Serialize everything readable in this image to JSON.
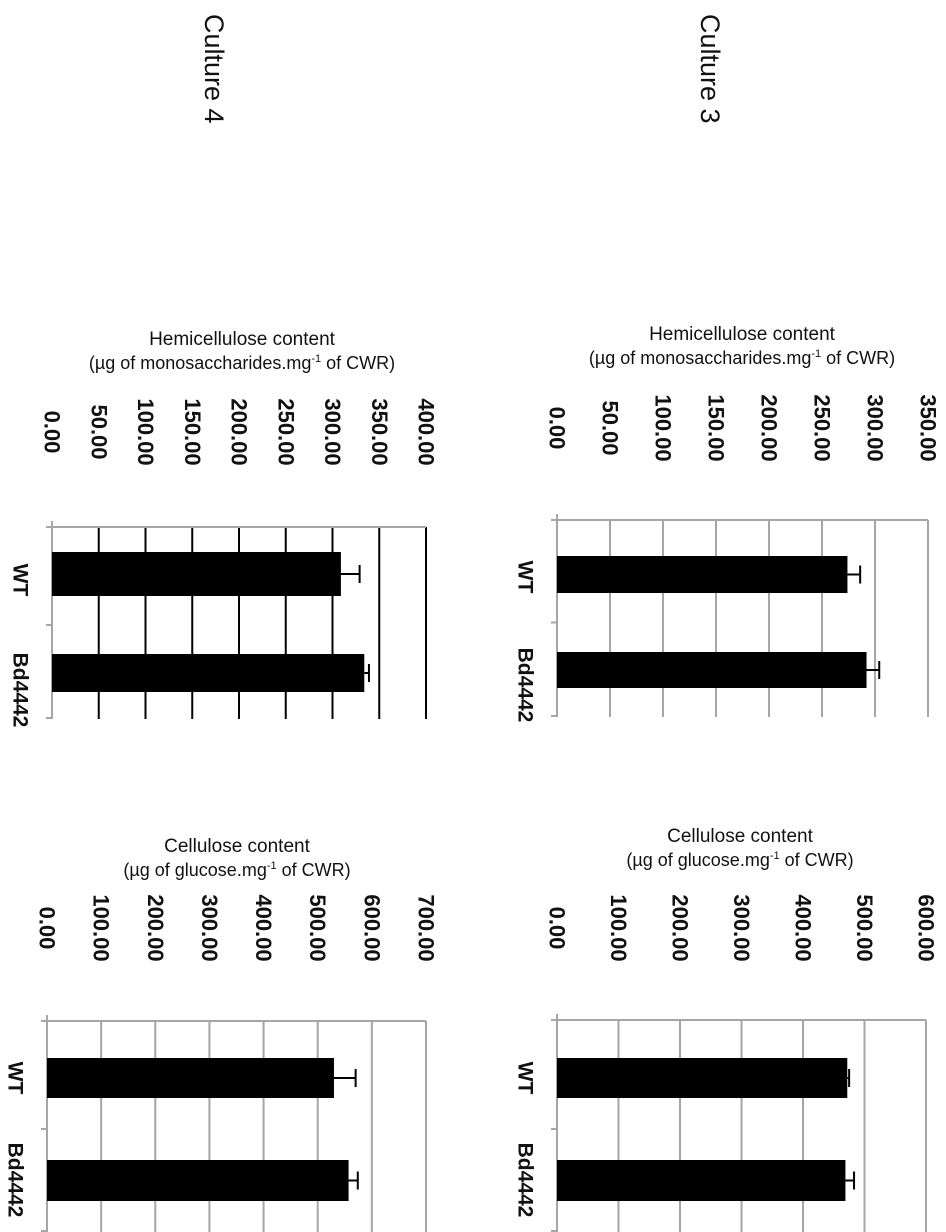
{
  "panels": {
    "culture_4": "Culture 4",
    "culture_3": "Culture 3"
  },
  "colors": {
    "bar": "#000000",
    "grid_light": "#a6a6a6",
    "grid_dark": "#000000",
    "text": "#111111"
  },
  "chart_data": [
    {
      "id": "c4-hemi",
      "type": "bar",
      "title": "Hemicellulose content",
      "subtitle_pre": "(µg of monosaccharides.mg",
      "subtitle_sup": "-1",
      "subtitle_post": " of CWR)",
      "categories": [
        "WT",
        "Bd4442"
      ],
      "values": [
        309,
        334
      ],
      "errors": [
        20,
        5
      ],
      "ticks": [
        "0.00",
        "50.00",
        "100.00",
        "150.00",
        "200.00",
        "250.00",
        "300.00",
        "350.00",
        "400.00"
      ],
      "ylim": [
        0,
        400
      ],
      "grid": "dark"
    },
    {
      "id": "c3-hemi",
      "type": "bar",
      "title": "Hemicellulose content",
      "subtitle_pre": "(µg of monosaccharides.mg",
      "subtitle_sup": "-1",
      "subtitle_post": " of CWR)",
      "categories": [
        "WT",
        "Bd4442"
      ],
      "values": [
        274,
        292
      ],
      "errors": [
        12,
        12
      ],
      "ticks": [
        "0.00",
        "50.00",
        "100.00",
        "150.00",
        "200.00",
        "250.00",
        "300.00",
        "350.00"
      ],
      "ylim": [
        0,
        350
      ],
      "grid": "light"
    },
    {
      "id": "c4-cell",
      "type": "bar",
      "title": "Cellulose content",
      "subtitle_pre": "(µg of glucose.mg",
      "subtitle_sup": "-1",
      "subtitle_post": "  of CWR)",
      "categories": [
        "WT",
        "Bd4442"
      ],
      "values": [
        530,
        557
      ],
      "errors": [
        40,
        17
      ],
      "ticks": [
        "0.00",
        "100.00",
        "200.00",
        "300.00",
        "400.00",
        "500.00",
        "600.00",
        "700.00"
      ],
      "ylim": [
        0,
        700
      ],
      "grid": "light"
    },
    {
      "id": "c3-cell",
      "type": "bar",
      "title": "Cellulose content",
      "subtitle_pre": "(µg of glucose.mg",
      "subtitle_sup": "-1",
      "subtitle_post": " of CWR)",
      "categories": [
        "WT",
        "Bd4442"
      ],
      "values": [
        472,
        469
      ],
      "errors": [
        3,
        14
      ],
      "ticks": [
        "0.00",
        "100.00",
        "200.00",
        "300.00",
        "400.00",
        "500.00",
        "600.00"
      ],
      "ylim": [
        0,
        600
      ],
      "grid": "light"
    }
  ]
}
